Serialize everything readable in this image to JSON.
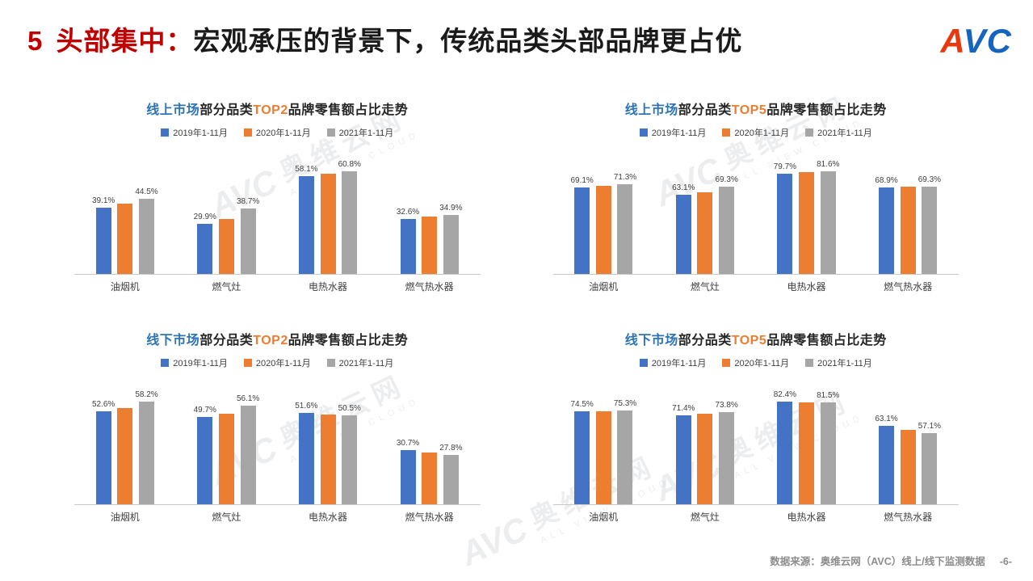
{
  "header": {
    "number": "5",
    "emphasis": "头部集中：",
    "title": "宏观承压的背景下，传统品类头部品牌更占优",
    "logo_a": "A",
    "logo_vc": "VC"
  },
  "colors": {
    "accent-red": "#c00000",
    "logo-red": "#e8380d",
    "logo-blue": "#1565c0",
    "title-blue": "#2e74b5",
    "title-orange": "#ed7d31",
    "series1": "#4472c4",
    "series2": "#ed7d31",
    "series3": "#a6a6a6"
  },
  "watermark": {
    "brand": "AVC",
    "name": "奥维云网",
    "subtitle": "ALL VIEW CLOUD"
  },
  "footer": {
    "source": "数据来源：奥维云网（AVC）线上/线下监测数据",
    "page": "-6-"
  },
  "chart_data": [
    {
      "type": "bar",
      "title_market": "线上市场",
      "title_mid": "部分品类",
      "title_top": "TOP2",
      "title_tail": "品牌零售额占比走势",
      "value_suffix": "%",
      "ylim": [
        0,
        70
      ],
      "categories": [
        "油烟机",
        "燃气灶",
        "电热水器",
        "燃气热水器"
      ],
      "series": [
        {
          "name": "2019年1-11月",
          "color": "series1",
          "show_labels": true,
          "values": [
            39.1,
            29.9,
            58.1,
            32.6
          ]
        },
        {
          "name": "2020年1-11月",
          "color": "series2",
          "show_labels": false,
          "values": [
            41.5,
            32.5,
            59.5,
            34.0
          ]
        },
        {
          "name": "2021年1-11月",
          "color": "series3",
          "show_labels": true,
          "values": [
            44.5,
            38.7,
            60.8,
            34.9
          ]
        }
      ]
    },
    {
      "type": "bar",
      "title_market": "线上市场",
      "title_mid": "部分品类",
      "title_top": "TOP5",
      "title_tail": "品牌零售额占比走势",
      "value_suffix": "%",
      "ylim": [
        0,
        90
      ],
      "categories": [
        "油烟机",
        "燃气灶",
        "电热水器",
        "燃气热水器"
      ],
      "series": [
        {
          "name": "2019年1-11月",
          "color": "series1",
          "show_labels": true,
          "values": [
            69.1,
            63.1,
            79.7,
            68.9
          ]
        },
        {
          "name": "2020年1-11月",
          "color": "series2",
          "show_labels": false,
          "values": [
            70.2,
            64.8,
            80.8,
            69.4
          ]
        },
        {
          "name": "2021年1-11月",
          "color": "series3",
          "show_labels": true,
          "values": [
            71.3,
            69.3,
            81.6,
            69.3
          ]
        }
      ]
    },
    {
      "type": "bar",
      "title_market": "线下市场",
      "title_mid": "部分品类",
      "title_top": "TOP2",
      "title_tail": "品牌零售额占比走势",
      "value_suffix": "%",
      "ylim": [
        0,
        65
      ],
      "categories": [
        "油烟机",
        "燃气灶",
        "电热水器",
        "燃气热水器"
      ],
      "series": [
        {
          "name": "2019年1-11月",
          "color": "series1",
          "show_labels": true,
          "values": [
            52.6,
            49.7,
            51.6,
            30.7
          ]
        },
        {
          "name": "2020年1-11月",
          "color": "series2",
          "show_labels": false,
          "values": [
            54.5,
            51.5,
            51.0,
            29.5
          ]
        },
        {
          "name": "2021年1-11月",
          "color": "series3",
          "show_labels": true,
          "values": [
            58.2,
            56.1,
            50.5,
            27.8
          ]
        }
      ]
    },
    {
      "type": "bar",
      "title_market": "线下市场",
      "title_mid": "部分品类",
      "title_top": "TOP5",
      "title_tail": "品牌零售额占比走势",
      "value_suffix": "%",
      "ylim": [
        0,
        90
      ],
      "categories": [
        "油烟机",
        "燃气灶",
        "电热水器",
        "燃气热水器"
      ],
      "series": [
        {
          "name": "2019年1-11月",
          "color": "series1",
          "show_labels": true,
          "values": [
            74.5,
            71.4,
            82.4,
            63.1
          ]
        },
        {
          "name": "2020年1-11月",
          "color": "series2",
          "show_labels": false,
          "values": [
            74.8,
            72.5,
            82.0,
            60.0
          ]
        },
        {
          "name": "2021年1-11月",
          "color": "series3",
          "show_labels": true,
          "values": [
            75.3,
            73.8,
            81.5,
            57.1
          ]
        }
      ]
    }
  ]
}
